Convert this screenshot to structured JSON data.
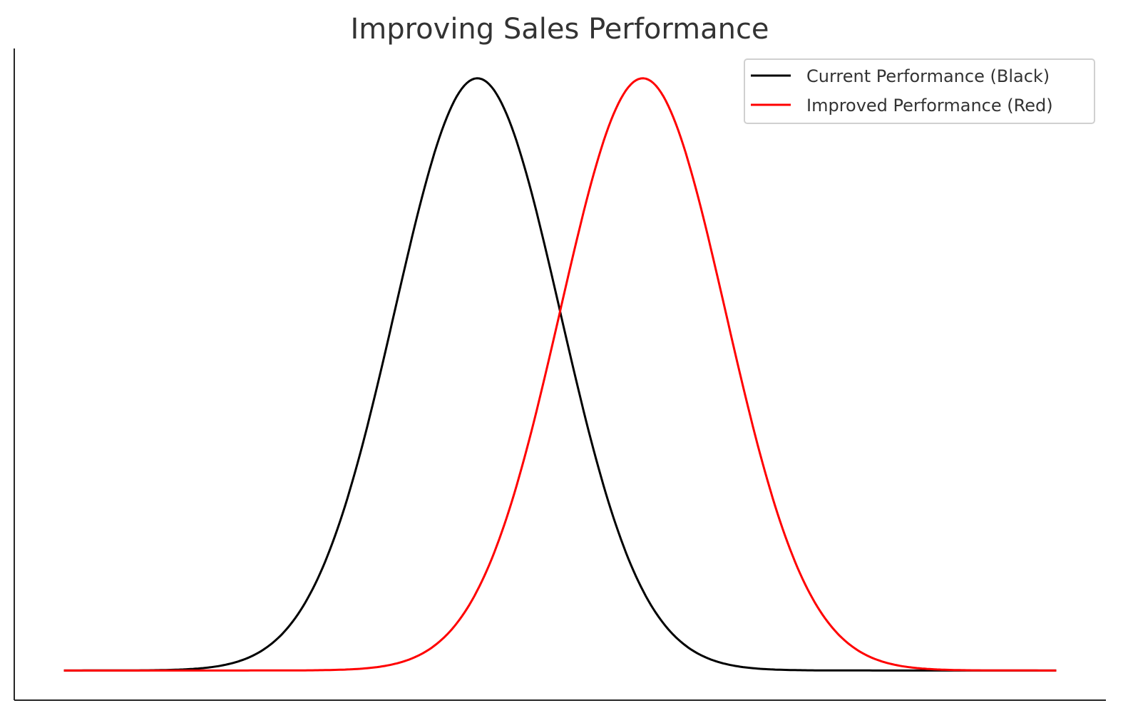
{
  "chart_data": {
    "type": "line",
    "title": "Improving Sales Performance",
    "xlabel": "",
    "ylabel": "",
    "xlim": [
      -5.6,
      7.6
    ],
    "ylim": [
      -0.02,
      0.419
    ],
    "grid": false,
    "ticks_visible": false,
    "legend_position": "top-right",
    "x_range": [
      -5,
      7
    ],
    "num_points": 400,
    "series": [
      {
        "name": "Current Performance (Black)",
        "distribution": "normal",
        "mean": 0,
        "std": 1,
        "peak": 0.3989,
        "color": "#000000"
      },
      {
        "name": "Improved Performance (Red)",
        "distribution": "normal",
        "mean": 2,
        "std": 1,
        "peak": 0.3989,
        "color": "#ff0000"
      }
    ]
  }
}
